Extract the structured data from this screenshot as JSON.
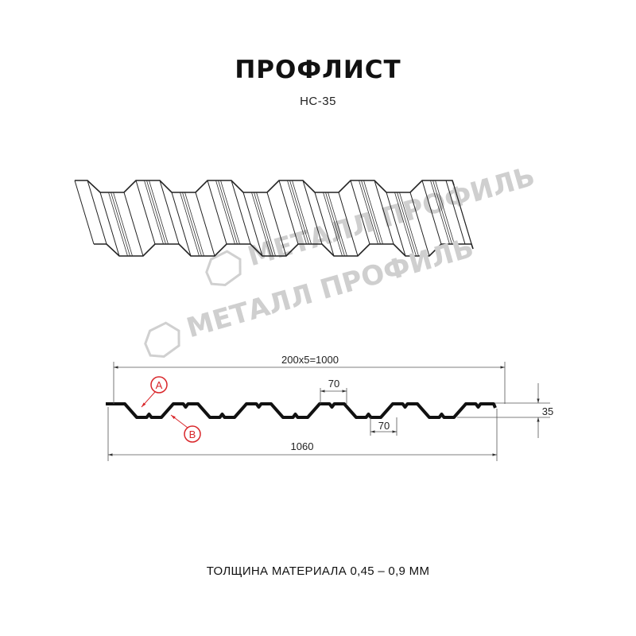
{
  "header": {
    "title": "ПРОФЛИСТ",
    "model": "НС-35"
  },
  "watermark": {
    "text": "МЕТАЛЛ ПРОФИЛЬ",
    "color": "#c8c8c8"
  },
  "drawing": {
    "dim_pitch": "200x5=1000",
    "dim_top_flat": "70",
    "dim_bottom_flat": "70",
    "dim_total_width": "1060",
    "dim_height": "35",
    "marker_a": "A",
    "marker_b": "B",
    "marker_color": "#d9262a"
  },
  "footer": {
    "thickness": "ТОЛЩИНА МАТЕРИАЛА 0,45 – 0,9 ММ"
  }
}
